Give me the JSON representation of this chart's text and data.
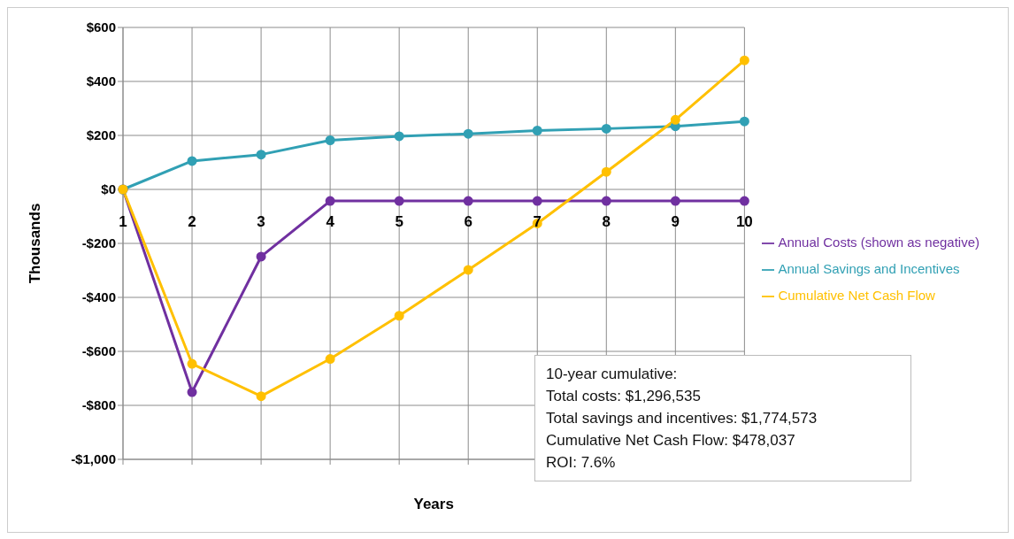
{
  "chart_data": {
    "type": "line",
    "xlabel": "Years",
    "ylabel": "Thousands",
    "categories": [
      "1",
      "2",
      "3",
      "4",
      "5",
      "6",
      "7",
      "8",
      "9",
      "10"
    ],
    "series": [
      {
        "name": "Annual Costs (shown as negative)",
        "color": "#7030a0",
        "values": [
          0,
          -751,
          -249,
          -43,
          -43,
          -43,
          -43,
          -43,
          -43,
          -43
        ]
      },
      {
        "name": "Annual Savings and Incentives",
        "color": "#31a0b4",
        "values": [
          0,
          105,
          129,
          182,
          197,
          206,
          218,
          225,
          234,
          252
        ]
      },
      {
        "name": "Cumulative Net Cash Flow",
        "color": "#ffc000",
        "values": [
          0,
          -646,
          -766,
          -628,
          -468,
          -298,
          -126,
          65,
          258,
          478
        ]
      }
    ],
    "ylim": [
      -1000,
      600
    ],
    "yticks": [
      {
        "value": -1000,
        "label": "-$1,000"
      },
      {
        "value": -800,
        "label": "-$800"
      },
      {
        "value": -600,
        "label": "-$600"
      },
      {
        "value": -400,
        "label": "-$400"
      },
      {
        "value": -200,
        "label": "-$200"
      },
      {
        "value": 0,
        "label": "$0"
      },
      {
        "value": 200,
        "label": "$200"
      },
      {
        "value": 400,
        "label": "$400"
      },
      {
        "value": 600,
        "label": "$600"
      }
    ],
    "grid": true,
    "legend": "right",
    "marker": "circle",
    "line_style": "solid",
    "annotations": [
      "10-year cumulative:",
      "Total costs: $1,296,535",
      "Total savings and incentives: $1,774,573",
      "Cumulative Net Cash Flow: $478,037",
      "ROI: 7.6%"
    ]
  }
}
